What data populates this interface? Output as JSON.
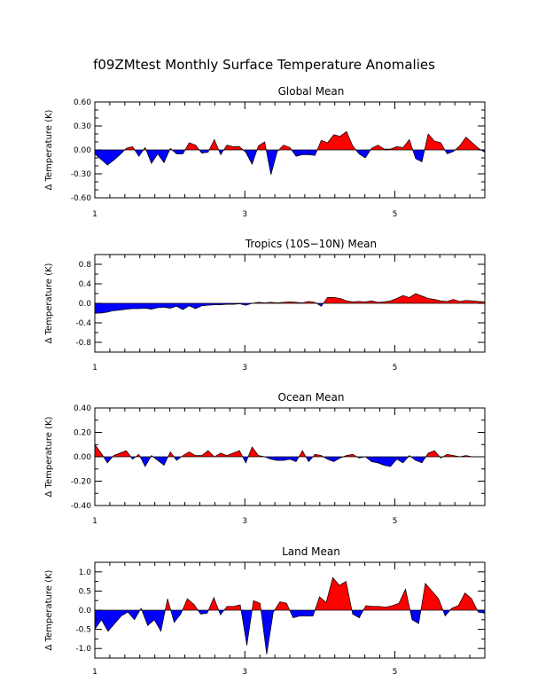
{
  "title": "f09ZMtest Monthly Surface Temperature Anomalies",
  "colors": {
    "positive": "#ff0000",
    "negative": "#0000ff",
    "axis": "#000000"
  },
  "chart_data": [
    {
      "type": "area",
      "title": "Global Mean",
      "xlabel": "",
      "ylabel": "Temperature (K)",
      "ylabel_symbol": "Δ",
      "xlim": [
        1,
        6.2
      ],
      "ylim": [
        -0.6,
        0.6
      ],
      "x_ticks": [
        1,
        3,
        5
      ],
      "y_ticks": [
        0.6,
        0.3,
        0.0,
        -0.3,
        -0.6
      ],
      "y_tick_labels": [
        "0.60",
        "0.30",
        "0.00",
        "-0.30",
        "-0.60"
      ],
      "y_minor_step": 0.1,
      "values": [
        -0.05,
        -0.12,
        -0.19,
        -0.13,
        -0.06,
        0.02,
        0.04,
        -0.08,
        0.03,
        -0.17,
        -0.05,
        -0.16,
        0.02,
        -0.05,
        -0.05,
        0.09,
        0.06,
        -0.04,
        -0.03,
        0.13,
        -0.06,
        0.06,
        0.04,
        0.04,
        -0.03,
        -0.18,
        0.05,
        0.1,
        -0.31,
        -0.02,
        0.06,
        0.03,
        -0.08,
        -0.06,
        -0.06,
        -0.07,
        0.12,
        0.09,
        0.19,
        0.17,
        0.23,
        0.05,
        -0.05,
        -0.1,
        0.02,
        0.06,
        0.01,
        0.01,
        0.04,
        0.03,
        0.13,
        -0.11,
        -0.15,
        0.2,
        0.11,
        0.09,
        -0.05,
        -0.02,
        0.05,
        0.16,
        0.09,
        0.02,
        -0.03
      ]
    },
    {
      "type": "area",
      "title": "Tropics (10S−10N) Mean",
      "xlabel": "",
      "ylabel": "Temperature (K)",
      "ylabel_symbol": "Δ",
      "xlim": [
        1,
        6.2
      ],
      "ylim": [
        -1.0,
        1.0
      ],
      "x_ticks": [
        1,
        3,
        5
      ],
      "y_ticks": [
        0.8,
        0.4,
        0.0,
        -0.4,
        -0.8
      ],
      "y_tick_labels": [
        "0.8",
        "0.4",
        "0.0",
        "-0.4",
        "-0.8"
      ],
      "y_minor_step": 0.2,
      "values": [
        -0.2,
        -0.2,
        -0.18,
        -0.15,
        -0.14,
        -0.12,
        -0.11,
        -0.11,
        -0.1,
        -0.12,
        -0.09,
        -0.08,
        -0.1,
        -0.06,
        -0.13,
        -0.05,
        -0.11,
        -0.05,
        -0.04,
        -0.03,
        -0.03,
        -0.02,
        -0.02,
        -0.01,
        -0.04,
        0.0,
        0.02,
        0.01,
        0.02,
        0.01,
        0.02,
        0.03,
        0.02,
        0.01,
        0.04,
        0.02,
        -0.06,
        0.12,
        0.12,
        0.1,
        0.05,
        0.03,
        0.04,
        0.03,
        0.05,
        0.02,
        0.03,
        0.05,
        0.1,
        0.16,
        0.12,
        0.2,
        0.15,
        0.1,
        0.08,
        0.05,
        0.04,
        0.08,
        0.04,
        0.06,
        0.05,
        0.04,
        0.03
      ]
    },
    {
      "type": "area",
      "title": "Ocean Mean",
      "xlabel": "",
      "ylabel": "Temperature (K)",
      "ylabel_symbol": "Δ",
      "xlim": [
        1,
        6.2
      ],
      "ylim": [
        -0.4,
        0.4
      ],
      "x_ticks": [
        1,
        3,
        5
      ],
      "y_ticks": [
        0.4,
        0.2,
        0.0,
        -0.2,
        -0.4
      ],
      "y_tick_labels": [
        "0.40",
        "0.20",
        "0.00",
        "-0.20",
        "-0.40"
      ],
      "y_minor_step": 0.1,
      "values": [
        0.1,
        0.03,
        -0.05,
        0.01,
        0.03,
        0.05,
        -0.02,
        0.02,
        -0.08,
        0.01,
        -0.03,
        -0.07,
        0.04,
        -0.03,
        0.01,
        0.04,
        0.01,
        0.01,
        0.05,
        0.0,
        0.03,
        0.01,
        0.03,
        0.05,
        -0.05,
        0.08,
        0.01,
        0.0,
        -0.02,
        -0.03,
        -0.03,
        -0.02,
        -0.04,
        0.05,
        -0.04,
        0.02,
        0.01,
        -0.02,
        -0.04,
        -0.01,
        0.01,
        0.02,
        -0.01,
        0.0,
        -0.04,
        -0.05,
        -0.07,
        -0.08,
        -0.02,
        -0.05,
        0.01,
        -0.03,
        -0.05,
        0.03,
        0.05,
        -0.01,
        0.02,
        0.01,
        0.0,
        0.01,
        0.0,
        0.0,
        0.0
      ]
    },
    {
      "type": "area",
      "title": "Land Mean",
      "xlabel": "",
      "ylabel": "Temperature (K)",
      "ylabel_symbol": "Δ",
      "xlim": [
        1,
        6.2
      ],
      "ylim": [
        -1.25,
        1.25
      ],
      "x_ticks": [
        1,
        3,
        5
      ],
      "y_ticks": [
        1.0,
        0.5,
        0.0,
        -0.5,
        -1.0
      ],
      "y_tick_labels": [
        "1.0",
        "0.5",
        "0.0",
        "-0.5",
        "-1.0"
      ],
      "y_minor_step": 0.25,
      "values": [
        -0.5,
        -0.25,
        -0.55,
        -0.35,
        -0.15,
        -0.05,
        -0.25,
        0.05,
        -0.4,
        -0.25,
        -0.55,
        0.3,
        -0.32,
        -0.1,
        0.3,
        0.15,
        -0.1,
        -0.08,
        0.33,
        -0.12,
        0.1,
        0.1,
        0.14,
        -0.92,
        0.25,
        0.18,
        -1.15,
        -0.05,
        0.22,
        0.18,
        -0.2,
        -0.15,
        -0.15,
        -0.15,
        0.35,
        0.2,
        0.85,
        0.65,
        0.75,
        -0.1,
        -0.2,
        0.12,
        0.1,
        0.1,
        0.08,
        0.12,
        0.18,
        0.55,
        -0.25,
        -0.35,
        0.7,
        0.5,
        0.3,
        -0.15,
        0.05,
        0.12,
        0.45,
        0.3,
        -0.05,
        -0.08
      ]
    }
  ]
}
